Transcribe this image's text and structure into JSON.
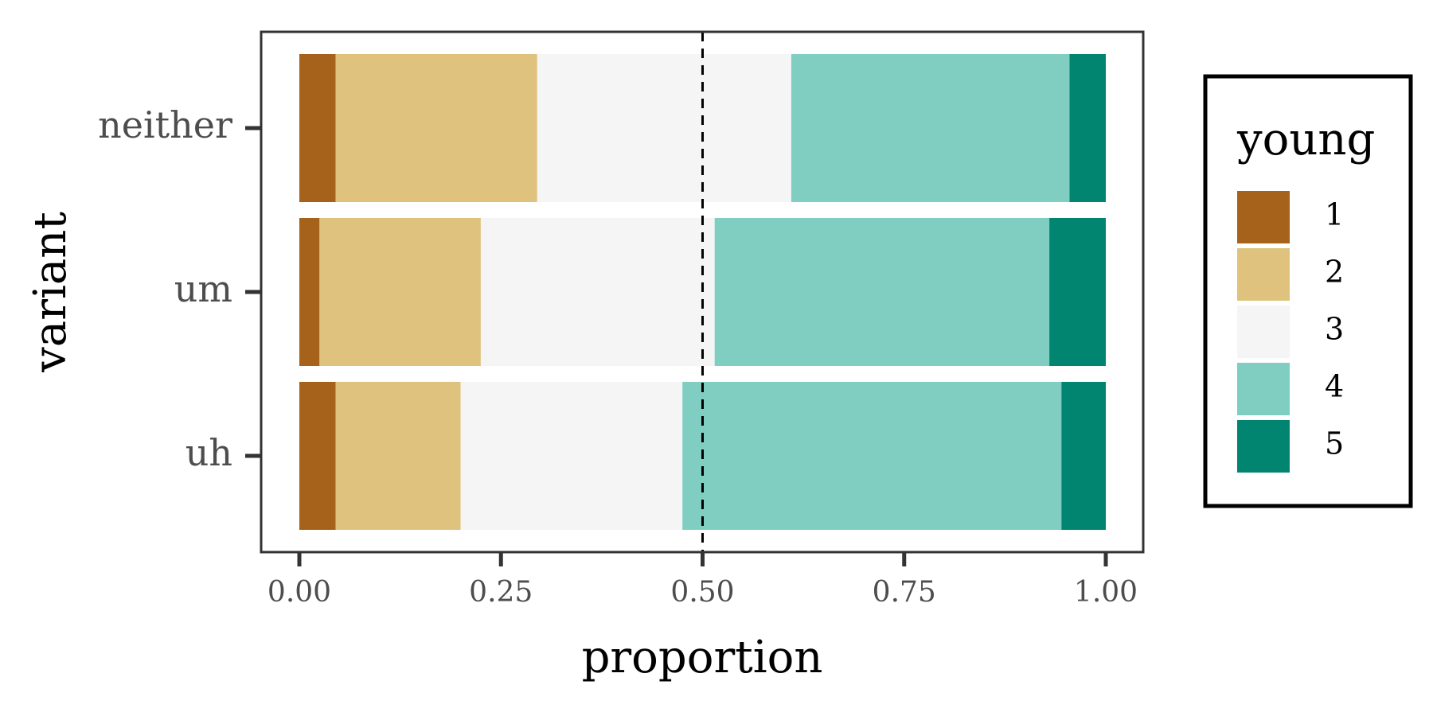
{
  "chart_data": {
    "type": "bar",
    "orientation": "horizontal",
    "stacked": true,
    "xlabel": "proportion",
    "ylabel": "variant",
    "xlim": [
      0,
      1
    ],
    "x_ticks": [
      "0.00",
      "0.25",
      "0.50",
      "0.75",
      "1.00"
    ],
    "x_tick_values": [
      0,
      0.25,
      0.5,
      0.75,
      1.0
    ],
    "categories": [
      "neither",
      "um",
      "uh"
    ],
    "reference_line": {
      "x": 0.5,
      "style": "dashed",
      "color": "#000000"
    },
    "legend": {
      "title": "young",
      "position": "right"
    },
    "series": [
      {
        "name": "1",
        "color": "#A6611A",
        "values": [
          0.045,
          0.025,
          0.045
        ]
      },
      {
        "name": "2",
        "color": "#DFC27D",
        "values": [
          0.25,
          0.2,
          0.155
        ]
      },
      {
        "name": "3",
        "color": "#F5F5F5",
        "values": [
          0.315,
          0.29,
          0.275
        ]
      },
      {
        "name": "4",
        "color": "#80CDC1",
        "values": [
          0.345,
          0.415,
          0.47
        ]
      },
      {
        "name": "5",
        "color": "#018571",
        "values": [
          0.045,
          0.07,
          0.055
        ]
      }
    ],
    "grid": false
  }
}
